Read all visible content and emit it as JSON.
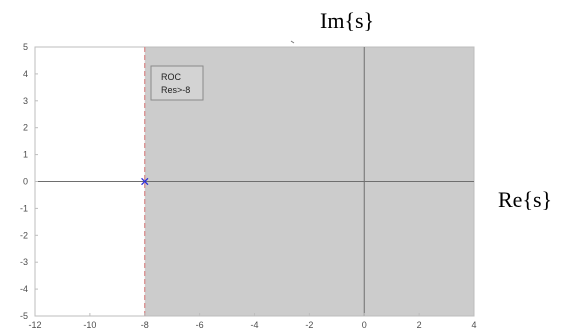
{
  "chart_data": {
    "type": "scatter",
    "title": "",
    "xlabel": "Re{s}",
    "ylabel": "Im{s}",
    "xlim": [
      -12,
      4
    ],
    "ylim": [
      -5,
      5
    ],
    "xticks": [
      -12,
      -10,
      -8,
      -6,
      -4,
      -2,
      0,
      2,
      4
    ],
    "yticks": [
      -5,
      -4,
      -3,
      -2,
      -1,
      0,
      1,
      2,
      3,
      4,
      5
    ],
    "grid": false,
    "poles": [
      {
        "x": -8,
        "y": 0,
        "marker": "x"
      }
    ],
    "roc": {
      "x_min": -8,
      "x_max": 4,
      "boundary_x": -8
    },
    "annotation": {
      "lines": [
        "ROC",
        "Res>-8"
      ]
    },
    "colors": {
      "roc_fill": "#cccccc",
      "boundary": "#d98c8c",
      "pole": "#2b2bd6",
      "axes_lines": "#6e6e6e",
      "frame": "#bdbdbd"
    }
  }
}
